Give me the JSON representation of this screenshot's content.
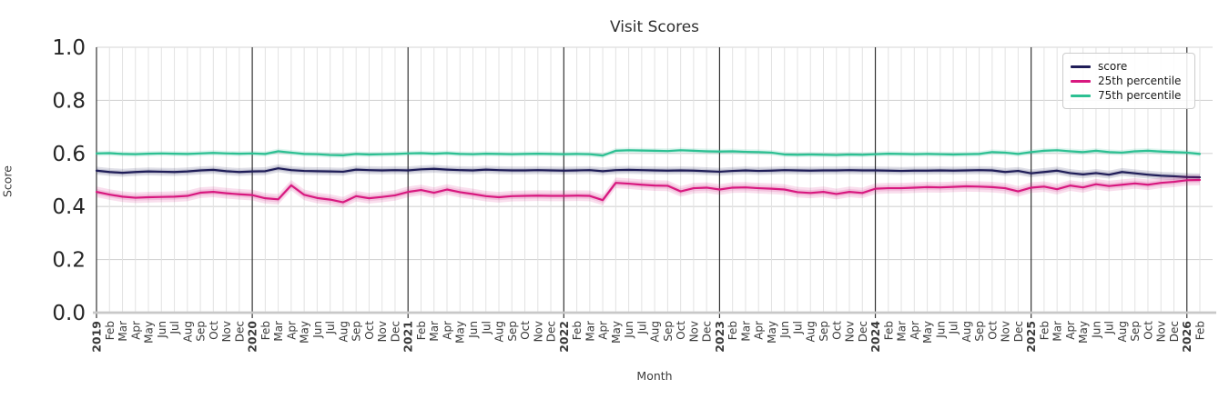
{
  "figure": {
    "title": "Visit Scores",
    "xlabel": "Month",
    "ylabel": "Score"
  },
  "legend": {
    "items": [
      {
        "label": "score",
        "color": "#1f1d58"
      },
      {
        "label": "25th percentile",
        "color": "#d8187f"
      },
      {
        "label": "75th percentile",
        "color": "#2cc092"
      }
    ]
  },
  "chart_data": {
    "type": "line",
    "title": "Visit Scores",
    "xlabel": "Month",
    "ylabel": "Score",
    "ylim": [
      0.0,
      1.0
    ],
    "yticks": [
      0.0,
      0.2,
      0.4,
      0.6,
      0.8,
      1.0
    ],
    "grid": true,
    "legend_position": "upper right",
    "x_labels": [
      "2019",
      "Feb",
      "Mar",
      "Apr",
      "May",
      "Jun",
      "Jul",
      "Aug",
      "Sep",
      "Oct",
      "Nov",
      "Dec",
      "2020",
      "Feb",
      "Mar",
      "Apr",
      "May",
      "Jun",
      "Jul",
      "Aug",
      "Sep",
      "Oct",
      "Nov",
      "Dec",
      "2021",
      "Feb",
      "Mar",
      "Apr",
      "May",
      "Jun",
      "Jul",
      "Aug",
      "Sep",
      "Oct",
      "Nov",
      "Dec",
      "2022",
      "Feb",
      "Mar",
      "Apr",
      "May",
      "Jun",
      "Jul",
      "Aug",
      "Sep",
      "Oct",
      "Nov",
      "Dec",
      "2023",
      "Feb",
      "Mar",
      "Apr",
      "May",
      "Jun",
      "Jul",
      "Aug",
      "Sep",
      "Oct",
      "Nov",
      "Dec",
      "2024",
      "Feb",
      "Mar",
      "Apr",
      "May",
      "Jun",
      "Jul",
      "Aug",
      "Sep",
      "Oct",
      "Nov",
      "Dec",
      "2025",
      "Feb",
      "Mar",
      "Apr",
      "May",
      "Jun",
      "Jul",
      "Aug",
      "Sep",
      "Oct",
      "Nov",
      "Dec",
      "2026",
      "Feb"
    ],
    "series": [
      {
        "name": "score",
        "color": "#1f1d58",
        "band_halfwidth": 0.015,
        "values": [
          0.535,
          0.53,
          0.527,
          0.53,
          0.532,
          0.531,
          0.53,
          0.532,
          0.536,
          0.538,
          0.533,
          0.53,
          0.532,
          0.533,
          0.544,
          0.537,
          0.534,
          0.533,
          0.532,
          0.531,
          0.539,
          0.537,
          0.536,
          0.537,
          0.536,
          0.54,
          0.542,
          0.539,
          0.537,
          0.536,
          0.539,
          0.537,
          0.536,
          0.536,
          0.537,
          0.536,
          0.535,
          0.536,
          0.537,
          0.533,
          0.537,
          0.538,
          0.537,
          0.536,
          0.535,
          0.536,
          0.535,
          0.533,
          0.531,
          0.534,
          0.536,
          0.534,
          0.535,
          0.537,
          0.536,
          0.535,
          0.536,
          0.536,
          0.537,
          0.536,
          0.536,
          0.535,
          0.534,
          0.535,
          0.535,
          0.536,
          0.535,
          0.536,
          0.537,
          0.536,
          0.53,
          0.534,
          0.525,
          0.53,
          0.535,
          0.526,
          0.521,
          0.526,
          0.52,
          0.53,
          0.525,
          0.52,
          0.516,
          0.514,
          0.511,
          0.51
        ]
      },
      {
        "name": "25th percentile",
        "color": "#d8187f",
        "band_halfwidth": 0.02,
        "values": [
          0.455,
          0.445,
          0.437,
          0.433,
          0.435,
          0.436,
          0.437,
          0.44,
          0.452,
          0.455,
          0.45,
          0.446,
          0.443,
          0.431,
          0.427,
          0.48,
          0.444,
          0.432,
          0.426,
          0.416,
          0.439,
          0.431,
          0.436,
          0.442,
          0.455,
          0.462,
          0.452,
          0.464,
          0.454,
          0.447,
          0.439,
          0.435,
          0.439,
          0.44,
          0.441,
          0.44,
          0.44,
          0.441,
          0.44,
          0.424,
          0.489,
          0.486,
          0.482,
          0.479,
          0.478,
          0.457,
          0.469,
          0.471,
          0.464,
          0.471,
          0.472,
          0.469,
          0.467,
          0.464,
          0.454,
          0.451,
          0.455,
          0.447,
          0.455,
          0.451,
          0.467,
          0.469,
          0.469,
          0.471,
          0.473,
          0.472,
          0.474,
          0.476,
          0.475,
          0.473,
          0.469,
          0.457,
          0.471,
          0.475,
          0.465,
          0.479,
          0.472,
          0.484,
          0.477,
          0.482,
          0.487,
          0.482,
          0.489,
          0.493,
          0.499,
          0.5
        ]
      },
      {
        "name": "75th percentile",
        "color": "#2cc092",
        "band_halfwidth": 0.01,
        "values": [
          0.6,
          0.601,
          0.598,
          0.597,
          0.599,
          0.6,
          0.599,
          0.598,
          0.6,
          0.602,
          0.6,
          0.599,
          0.6,
          0.598,
          0.608,
          0.603,
          0.598,
          0.597,
          0.594,
          0.593,
          0.598,
          0.596,
          0.597,
          0.598,
          0.6,
          0.601,
          0.599,
          0.601,
          0.598,
          0.597,
          0.599,
          0.598,
          0.597,
          0.598,
          0.599,
          0.598,
          0.597,
          0.598,
          0.597,
          0.592,
          0.61,
          0.612,
          0.611,
          0.61,
          0.609,
          0.612,
          0.61,
          0.608,
          0.607,
          0.608,
          0.606,
          0.605,
          0.603,
          0.596,
          0.595,
          0.596,
          0.595,
          0.594,
          0.596,
          0.595,
          0.597,
          0.599,
          0.598,
          0.597,
          0.598,
          0.597,
          0.596,
          0.597,
          0.598,
          0.605,
          0.603,
          0.598,
          0.605,
          0.61,
          0.612,
          0.608,
          0.605,
          0.61,
          0.605,
          0.603,
          0.608,
          0.61,
          0.607,
          0.605,
          0.603,
          0.598
        ]
      }
    ]
  }
}
